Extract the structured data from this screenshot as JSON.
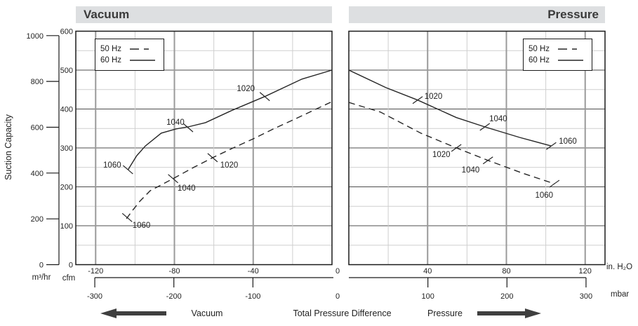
{
  "headers": {
    "left": "Vacuum",
    "right": "Pressure"
  },
  "legend": {
    "items": [
      {
        "label": "50 Hz",
        "style": "dashed"
      },
      {
        "label": "60 Hz",
        "style": "solid"
      }
    ]
  },
  "footer": {
    "left_label": "Vacuum",
    "center_label": "Total Pressure Difference",
    "right_label": "Pressure"
  },
  "colors": {
    "header_bar": "#dddfe1",
    "header_text": "#3a3a3a",
    "curve": "#262626",
    "grid_minor": "#cfcfcf",
    "grid_major_h": "#4d4d4d",
    "grid_major_v": "#9a9a9a",
    "frame": "#1a1a1a",
    "arrow": "#3f3f3f"
  },
  "chart_data": {
    "type": "line",
    "title": "Suction Capacity vs Total Pressure Difference (Vacuum / Pressure panels)",
    "y_axis": {
      "title": "Suction Capacity",
      "unit_primary": "m³/hr",
      "ticks_m3hr": [
        0,
        200,
        400,
        600,
        800,
        1000
      ],
      "unit_secondary": "cfm",
      "ticks_cfm": [
        0,
        100,
        200,
        300,
        400,
        500,
        600
      ],
      "range_cfm": [
        0,
        600
      ],
      "grid_minor_step_cfm": 50
    },
    "x_axis": {
      "label": "Total Pressure Difference",
      "unit_primary": "in. H₂O",
      "ticks_inh2o": [
        -120,
        -80,
        -40,
        0,
        40,
        80,
        120
      ],
      "unit_secondary": "mbar",
      "ticks_mbar": [
        -300,
        -200,
        -100,
        0,
        100,
        200,
        300
      ],
      "range_mbar_left_panel": [
        -324,
        0
      ],
      "range_mbar_right_panel": [
        0,
        324
      ],
      "mbar_per_inh2o": 2.491
    },
    "panels": [
      {
        "name": "Vacuum",
        "series": [
          {
            "name": "60 Hz",
            "line": "solid",
            "points_mbar_cfm": [
              [
                -258,
                244
              ],
              [
                -247,
                280
              ],
              [
                -236,
                305
              ],
              [
                -216,
                338
              ],
              [
                -197,
                349
              ],
              [
                -182,
                354
              ],
              [
                -160,
                365
              ],
              [
                -127,
                396
              ],
              [
                -85,
                432
              ],
              [
                -38,
                477
              ],
              [
                0,
                500
              ]
            ],
            "marks": [
              {
                "label": "1060",
                "tick": [
                  -258,
                  244
                ],
                "text": [
                  -278,
                  257
                ]
              },
              {
                "label": "1040",
                "tick": [
                  -182,
                  352
                ],
                "text": [
                  -198,
                  367
                ]
              },
              {
                "label": "1020",
                "tick": [
                  -85,
                  432
                ],
                "text": [
                  -109,
                  453
                ]
              }
            ]
          },
          {
            "name": "50 Hz",
            "line": "dashed",
            "points_mbar_cfm": [
              [
                -260,
                118
              ],
              [
                -252,
                140
              ],
              [
                -243,
                163
              ],
              [
                -230,
                190
              ],
              [
                -201,
                221
              ],
              [
                -175,
                250
              ],
              [
                -151,
                275
              ],
              [
                -125,
                300
              ],
              [
                -100,
                323
              ],
              [
                -73,
                350
              ],
              [
                -47,
                374
              ],
              [
                -22,
                398
              ],
              [
                0,
                419
              ]
            ],
            "marks": [
              {
                "label": "1060",
                "tick": [
                  -259,
                  121
                ],
                "text": [
                  -241,
                  102
                ]
              },
              {
                "label": "1040",
                "tick": [
                  -201,
                  221
                ],
                "text": [
                  -184,
                  197
                ]
              },
              {
                "label": "1020",
                "tick": [
                  -151,
                  275
                ],
                "text": [
                  -130,
                  257
                ]
              }
            ]
          }
        ]
      },
      {
        "name": "Pressure",
        "series": [
          {
            "name": "60 Hz",
            "line": "solid",
            "points_mbar_cfm": [
              [
                0,
                500
              ],
              [
                47,
                455
              ],
              [
                87,
                423
              ],
              [
                136,
                378
              ],
              [
                172,
                354
              ],
              [
                216,
                327
              ],
              [
                256,
                305
              ]
            ],
            "marks": [
              {
                "label": "1020",
                "tick": [
                  87,
                  423
                ],
                "text": [
                  107,
                  433
                ]
              },
              {
                "label": "1040",
                "tick": [
                  172,
                  354
                ],
                "text": [
                  189,
                  376
                ]
              },
              {
                "label": "1060",
                "tick": [
                  256,
                  305
                ],
                "text": [
                  277,
                  318
                ]
              }
            ]
          },
          {
            "name": "50 Hz",
            "line": "dashed",
            "points_mbar_cfm": [
              [
                0,
                417
              ],
              [
                40,
                392
              ],
              [
                91,
                338
              ],
              [
                136,
                300
              ],
              [
                176,
                268
              ],
              [
                220,
                235
              ],
              [
                260,
                208
              ]
            ],
            "marks": [
              {
                "label": "1020",
                "tick": [
                  136,
                  300
                ],
                "text": [
                  117,
                  284
                ]
              },
              {
                "label": "1040",
                "tick": [
                  176,
                  268
                ],
                "text": [
                  154,
                  244
                ]
              },
              {
                "label": "1060",
                "tick": [
                  260,
                  208
                ],
                "text": [
                  247,
                  179
                ]
              }
            ]
          }
        ]
      }
    ]
  }
}
